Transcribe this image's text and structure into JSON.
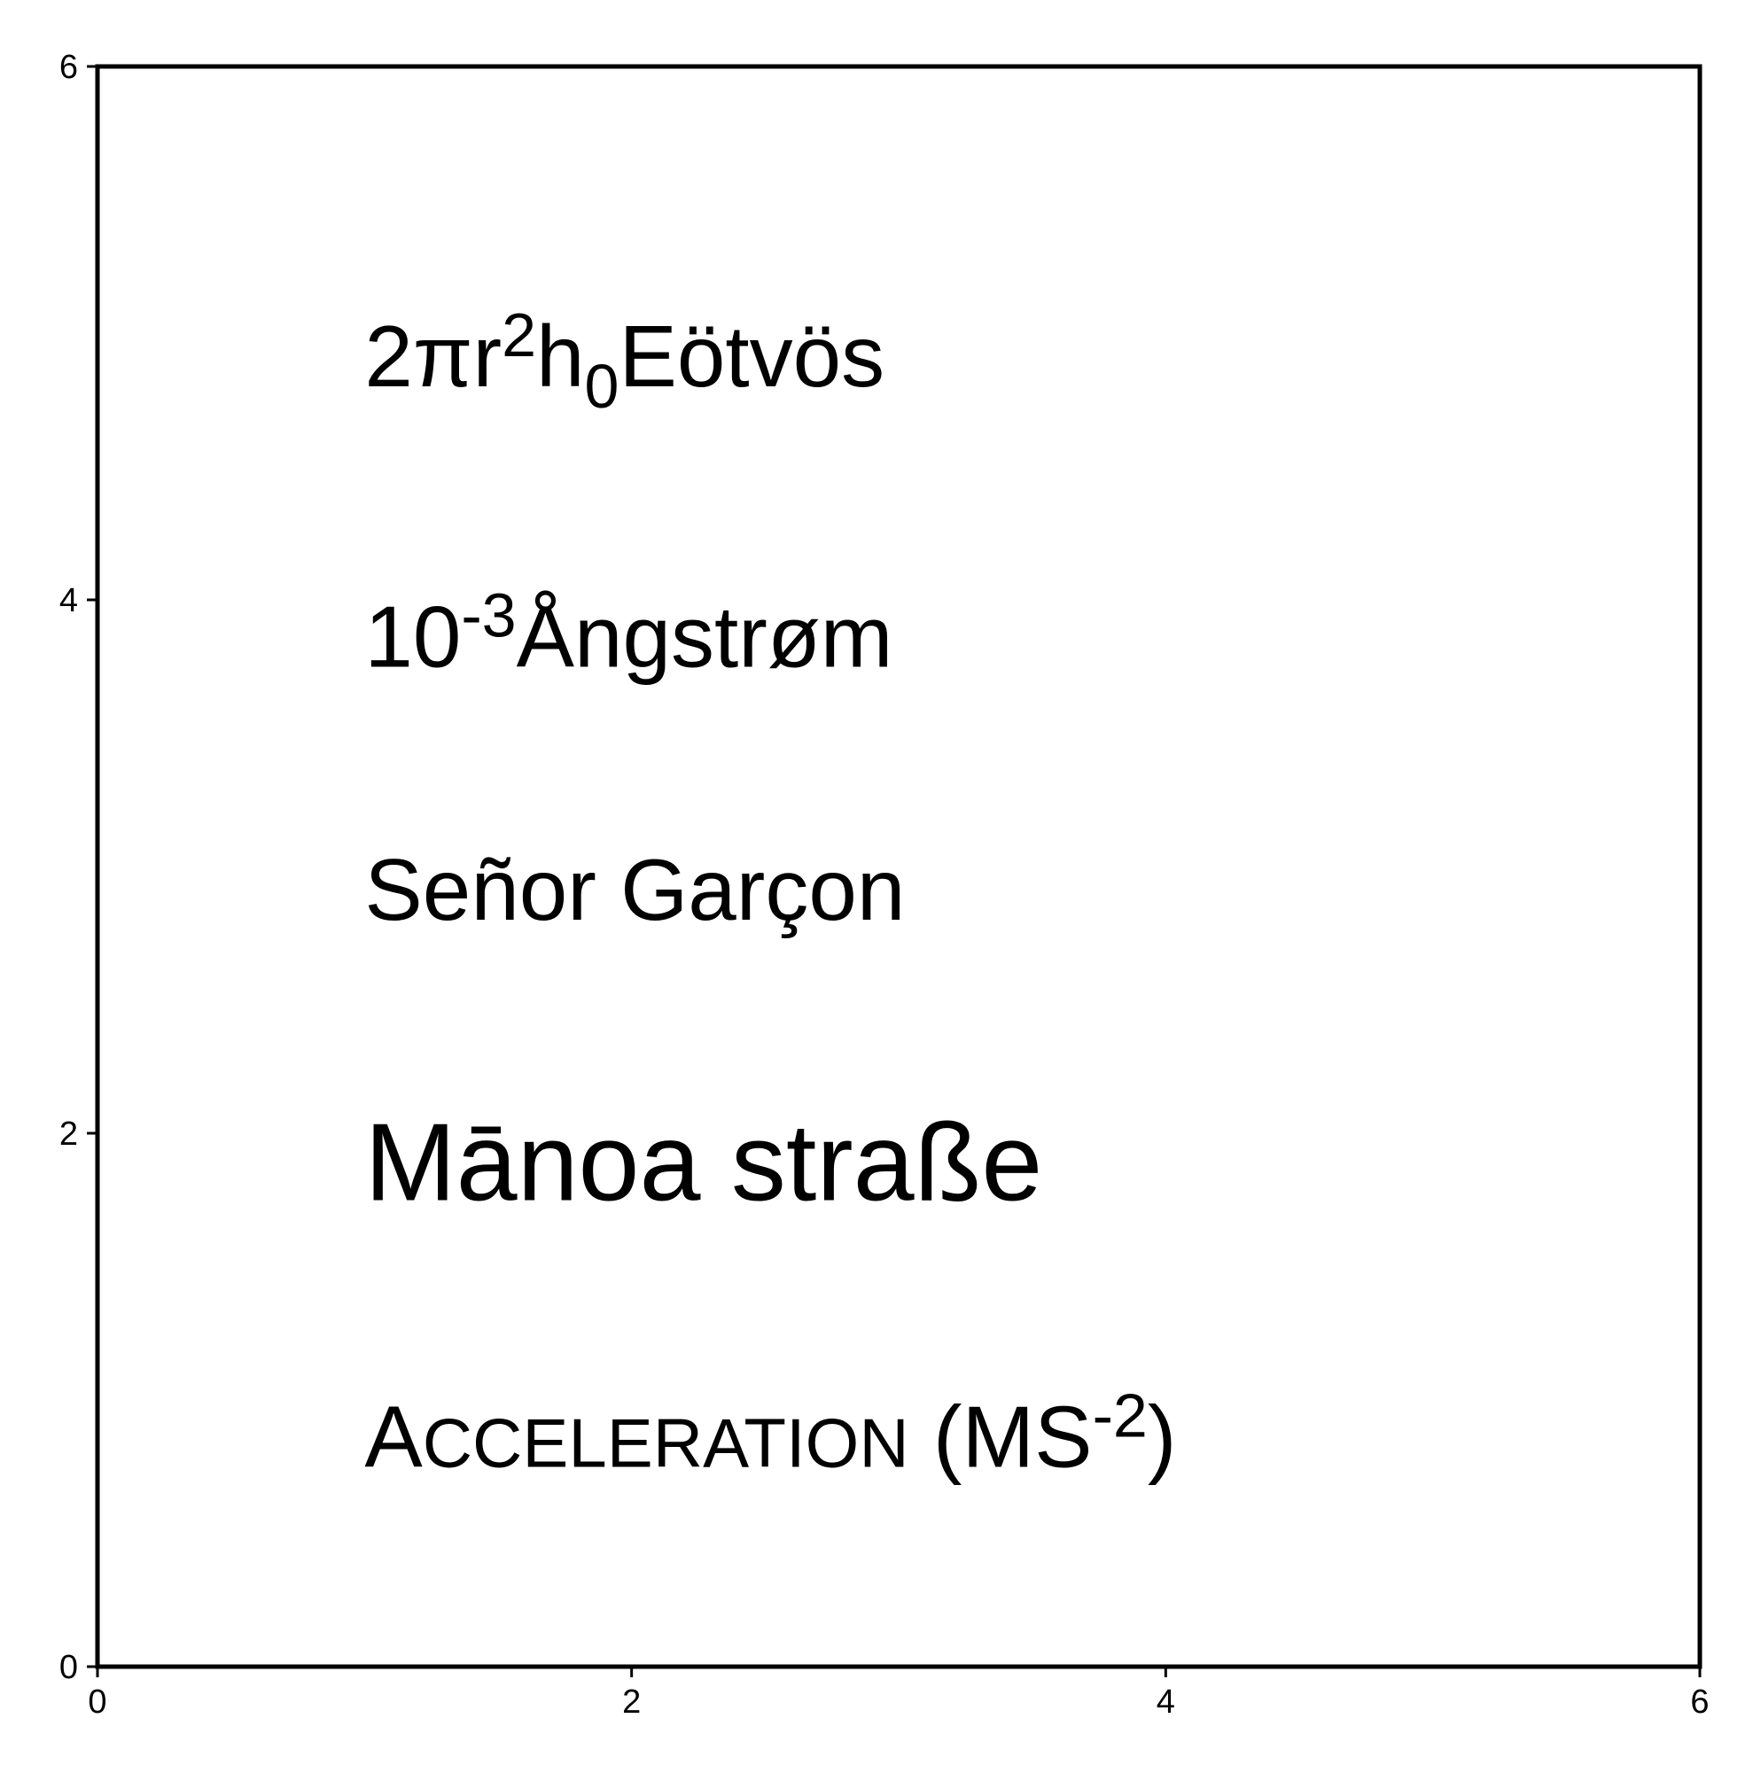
{
  "chart_data": {
    "type": "scatter",
    "title": "",
    "xlabel": "",
    "ylabel": "",
    "xlim": [
      0,
      6
    ],
    "ylim": [
      0,
      6
    ],
    "xticks": [
      0,
      2,
      4,
      6
    ],
    "yticks": [
      0,
      2,
      4,
      6
    ],
    "xtick_labels": [
      "0",
      "2",
      "4",
      "6"
    ],
    "ytick_labels": [
      "0",
      "2",
      "4",
      "6"
    ],
    "grid": false,
    "annotations": [
      {
        "x": 1,
        "y": 4.8,
        "parts": [
          {
            "text": "2π"
          },
          {
            "text": "r"
          },
          {
            "text": "2",
            "style": "superscript"
          },
          {
            "text": "h"
          },
          {
            "text": "0",
            "style": "subscript"
          },
          {
            "text": "Eötvös"
          }
        ]
      },
      {
        "x": 1,
        "y": 3.75,
        "parts": [
          {
            "text": "10"
          },
          {
            "text": "-3",
            "style": "superscript"
          },
          {
            "text": "Ångstrøm"
          }
        ]
      },
      {
        "x": 1,
        "y": 2.8,
        "parts": [
          {
            "text": "Señor Garçon"
          }
        ]
      },
      {
        "x": 1,
        "y": 1.75,
        "size": "large",
        "parts": [
          {
            "text": "Mānoa straße"
          }
        ]
      },
      {
        "x": 1,
        "y": 0.75,
        "parts": [
          {
            "text": "A"
          },
          {
            "text": "CCELERATION",
            "style": "small-caps"
          },
          {
            "text": " (MS"
          },
          {
            "text": "-2",
            "style": "superscript"
          },
          {
            "text": ")"
          }
        ]
      }
    ]
  }
}
